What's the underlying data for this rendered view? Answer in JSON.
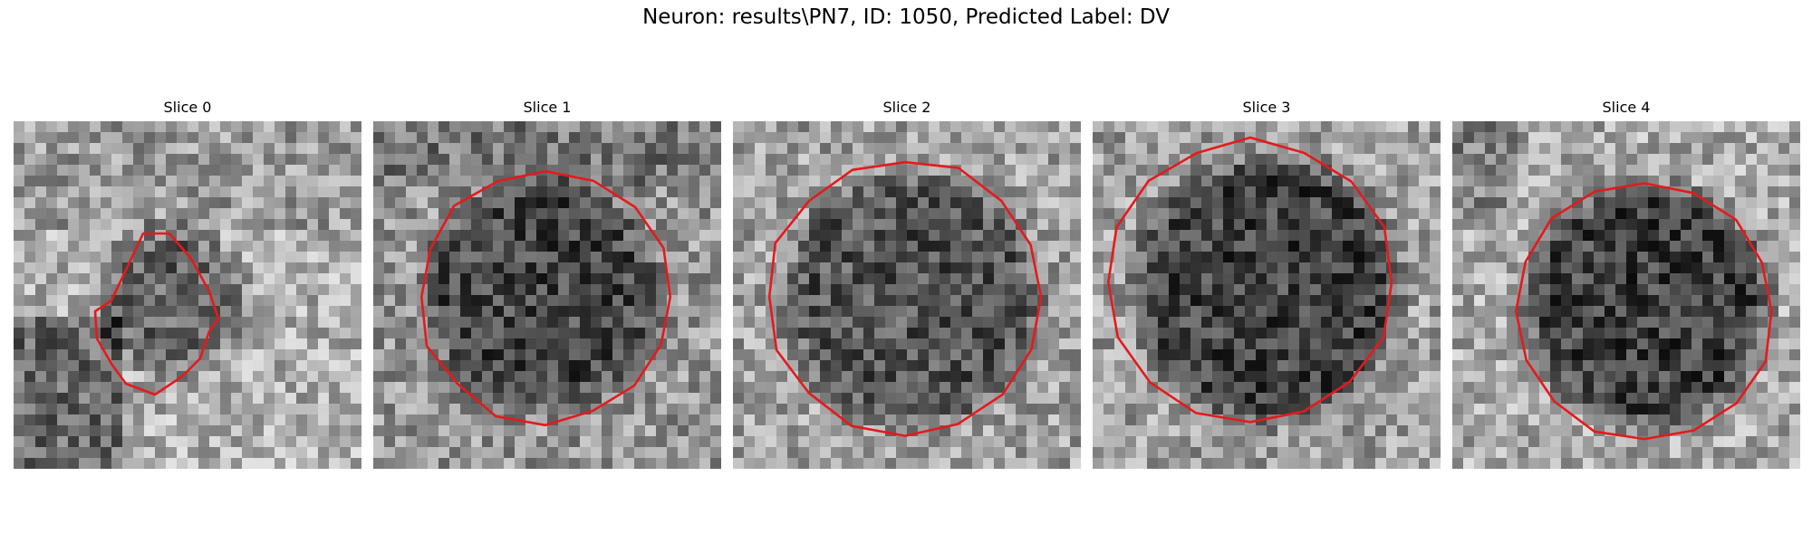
{
  "figure": {
    "title": "Neuron: results\\PN7, ID: 1050, Predicted Label: DV",
    "contour_color": "#e41a1c"
  },
  "panels": [
    {
      "title": "Slice 0"
    },
    {
      "title": "Slice 1"
    },
    {
      "title": "Slice 2"
    },
    {
      "title": "Slice 3"
    },
    {
      "title": "Slice 4"
    }
  ]
}
